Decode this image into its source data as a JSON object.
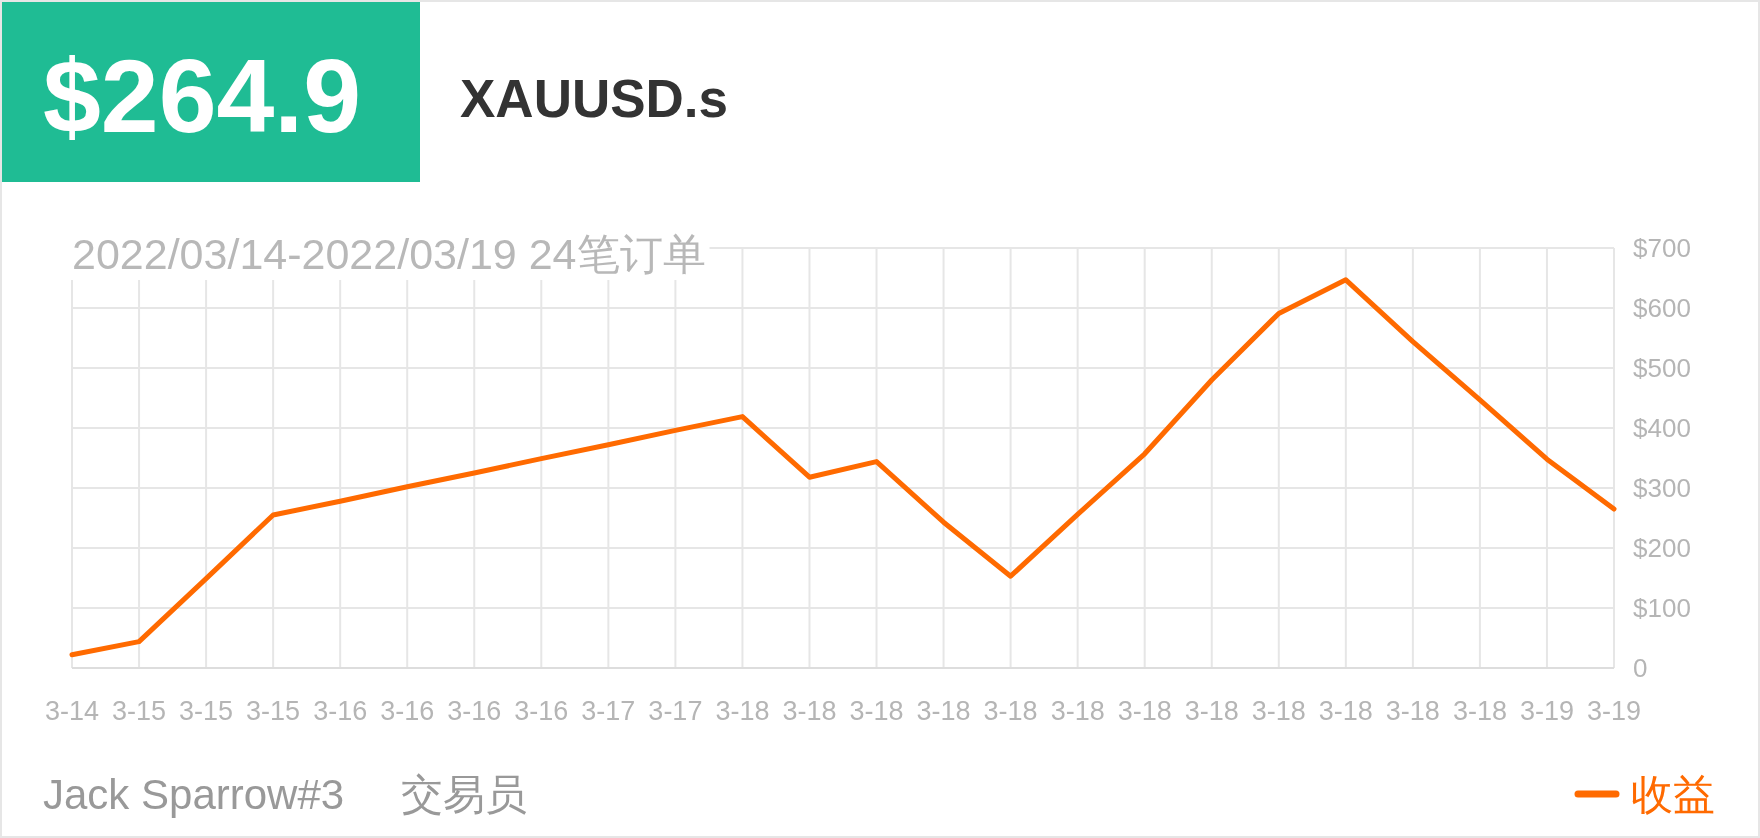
{
  "chart_data": {
    "type": "line",
    "title": "XAUUSD.s",
    "subtitle": "2022/03/14-2022/03/19 24笔订单",
    "annotations": [
      "$264.9",
      "Jack Sparrow#3",
      "交易员"
    ],
    "categories": [
      "3-14",
      "3-15",
      "3-15",
      "3-15",
      "3-16",
      "3-16",
      "3-16",
      "3-16",
      "3-17",
      "3-17",
      "3-18",
      "3-18",
      "3-18",
      "3-18",
      "3-18",
      "3-18",
      "3-18",
      "3-18",
      "3-18",
      "3-18",
      "3-18",
      "3-18",
      "3-19",
      "3-19"
    ],
    "series": [
      {
        "name": "收益",
        "color": "#ff6a00",
        "values": [
          22,
          44,
          149,
          255,
          278,
          302,
          325,
          349,
          372,
          396,
          419,
          318,
          344,
          243,
          153,
          256,
          357,
          480,
          591,
          647,
          544,
          447,
          348,
          265
        ]
      }
    ],
    "ylim": [
      0,
      700
    ],
    "yticks": [
      0,
      {
        "value": 100,
        "label": "$100"
      },
      {
        "value": 200,
        "label": "$200"
      },
      {
        "value": 300,
        "label": "$300"
      },
      {
        "value": 400,
        "label": "$400"
      },
      {
        "value": 500,
        "label": "$500"
      },
      {
        "value": 600,
        "label": "$600"
      },
      {
        "value": 700,
        "label": "$700"
      }
    ],
    "grid": true,
    "legend": "bottom right"
  }
}
